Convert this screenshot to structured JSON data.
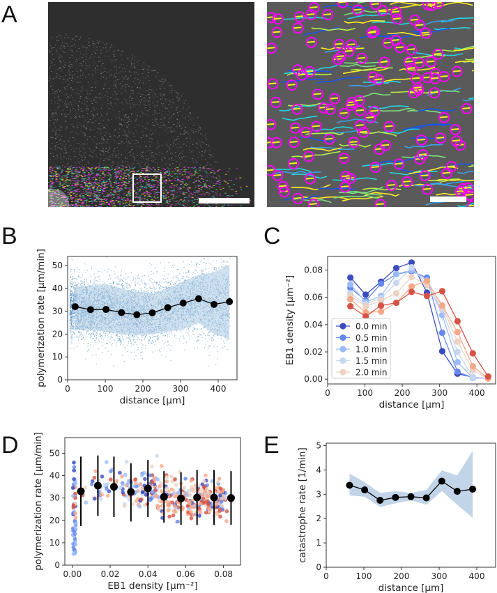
{
  "panel_labels": {
    "A": "A",
    "B": "B",
    "C": "C",
    "D": "D",
    "E": "E"
  },
  "panel_a": {
    "overview_image": "microscopy overview with tracked EB1 comets in lower region",
    "zoom_image": "zoomed region with magenta circles on tracked comets and colored tracks",
    "colors": {
      "circle": "#ff00ff",
      "tracks": [
        "#ffee22",
        "#22d5e0",
        "#1a55e8",
        "#7be07b",
        "#b6f04a"
      ]
    }
  },
  "chart_data": [
    {
      "id": "B",
      "type": "scatter",
      "title": "",
      "xlabel": "distance [μm]",
      "ylabel": "polymerization rate [μm/min]",
      "xlim": [
        0,
        450
      ],
      "ylim": [
        0,
        54
      ],
      "xticks": [
        0,
        100,
        200,
        300,
        400
      ],
      "yticks": [
        0,
        10,
        20,
        30,
        40,
        50
      ],
      "scatter_color": "#3d7fb6",
      "band_color": "#a9c8e2",
      "grid": false,
      "x": [
        20,
        61,
        102,
        143,
        184,
        225,
        266,
        307,
        348,
        389,
        430
      ],
      "mean": [
        32.0,
        30.7,
        30.8,
        29.4,
        28.5,
        29.3,
        31.6,
        33.6,
        35.5,
        33.0,
        34.2
      ],
      "band_lower": [
        22,
        22,
        21,
        20,
        19.5,
        20,
        21,
        22,
        25,
        20,
        18
      ],
      "band_upper": [
        41,
        41,
        42,
        40,
        38.5,
        38,
        40,
        43,
        46,
        47,
        50.5
      ]
    },
    {
      "id": "C",
      "type": "line",
      "title": "",
      "xlabel": "distance [μm]",
      "ylabel": "EB1 density [μm⁻²]",
      "xlim": [
        0,
        450
      ],
      "ylim": [
        -0.0035,
        0.09
      ],
      "xticks": [
        0,
        100,
        200,
        300,
        400
      ],
      "yticks": [
        "0.00",
        "0.02",
        "0.04",
        "0.06",
        "0.08"
      ],
      "legend_position": "lower-left",
      "grid": false,
      "x": [
        61,
        102,
        143,
        184,
        225,
        266,
        307,
        348,
        389,
        430
      ],
      "series": [
        {
          "name": "0.0 min",
          "color": "#3b4cc0",
          "values": [
            0.0745,
            0.062,
            0.0715,
            0.0815,
            0.0855,
            0.0635,
            0.0205,
            0.004,
            0.0015,
            0.0005
          ]
        },
        {
          "name": "0.5 min",
          "color": "#6788ee",
          "values": [
            0.067,
            0.0575,
            0.07,
            0.077,
            0.079,
            0.0745,
            0.034,
            0.0055,
            0.001,
            0.0005
          ]
        },
        {
          "name": "1.0 min",
          "color": "#9abbff",
          "values": [
            0.0695,
            0.0565,
            0.061,
            0.077,
            0.08,
            0.0725,
            0.047,
            0.0125,
            0.001,
            0.0005
          ]
        },
        {
          "name": "1.5 min",
          "color": "#c9d7f0",
          "values": [
            0.063,
            0.055,
            0.0595,
            0.0705,
            0.082,
            0.069,
            0.051,
            0.02,
            0.0015,
            0.0005
          ]
        },
        {
          "name": "2.0 min",
          "color": "#edd1c2",
          "values": [
            0.061,
            0.0535,
            0.0575,
            0.063,
            0.075,
            0.069,
            0.0535,
            0.0275,
            0.0065,
            0.0005
          ]
        },
        {
          "name": "",
          "color": "#f7a889",
          "values": [
            0.0585,
            0.049,
            0.0495,
            0.056,
            0.068,
            0.072,
            0.054,
            0.0345,
            0.0095,
            0.0005
          ]
        },
        {
          "name": "",
          "color": "#d65244",
          "values": [
            0.0535,
            0.046,
            0.054,
            0.056,
            0.064,
            0.061,
            0.0645,
            0.0425,
            0.019,
            0.002
          ]
        }
      ]
    },
    {
      "id": "D",
      "type": "scatter",
      "title": "",
      "xlabel": "EB1 density [μm⁻²]",
      "ylabel": "polymerization rate [μm/min]",
      "xlim": [
        -0.004,
        0.089
      ],
      "ylim": [
        0,
        57
      ],
      "xticks": [
        "0.00",
        "0.02",
        "0.04",
        "0.06",
        "0.08"
      ],
      "yticks": [
        0,
        10,
        20,
        30,
        40,
        50
      ],
      "grid": false,
      "point_colors": [
        "#3b4cc0",
        "#6788ee",
        "#9abbff",
        "#c9d7f0",
        "#edd1c2",
        "#f7a889",
        "#d65244"
      ],
      "binned_x": [
        0.0045,
        0.0135,
        0.022,
        0.031,
        0.04,
        0.0485,
        0.0575,
        0.066,
        0.075,
        0.084
      ],
      "binned_mean": [
        33.0,
        35.5,
        35.0,
        32.7,
        34.3,
        30.5,
        29.8,
        30.2,
        30.2,
        30.0
      ],
      "binned_lower": [
        17.5,
        22.0,
        21.5,
        19.5,
        21.5,
        19.0,
        18.0,
        18.0,
        18.0,
        18.0
      ],
      "binned_upper": [
        48.5,
        49.0,
        48.5,
        45.5,
        47.0,
        42.0,
        41.5,
        42.5,
        42.5,
        42.0
      ]
    },
    {
      "id": "E",
      "type": "line",
      "title": "",
      "xlabel": "distance [μm]",
      "ylabel": "catastrophe rate [1/min]",
      "xlim": [
        0,
        450
      ],
      "ylim": [
        0,
        5.1
      ],
      "xticks": [
        0,
        100,
        200,
        300,
        400
      ],
      "yticks": [
        0,
        1,
        2,
        3,
        4,
        5
      ],
      "band_color": "#c2d4e8",
      "grid": false,
      "x": [
        62,
        102,
        143,
        184,
        225,
        266,
        307,
        348,
        389
      ],
      "mean": [
        3.37,
        3.18,
        2.75,
        2.87,
        2.9,
        2.85,
        3.54,
        3.12,
        3.21
      ],
      "band_lower": [
        2.95,
        2.9,
        2.48,
        2.63,
        2.75,
        2.57,
        3.13,
        2.57,
        2.03
      ],
      "band_upper": [
        3.85,
        3.5,
        3.05,
        3.13,
        3.05,
        3.18,
        3.98,
        3.78,
        4.78
      ]
    }
  ]
}
